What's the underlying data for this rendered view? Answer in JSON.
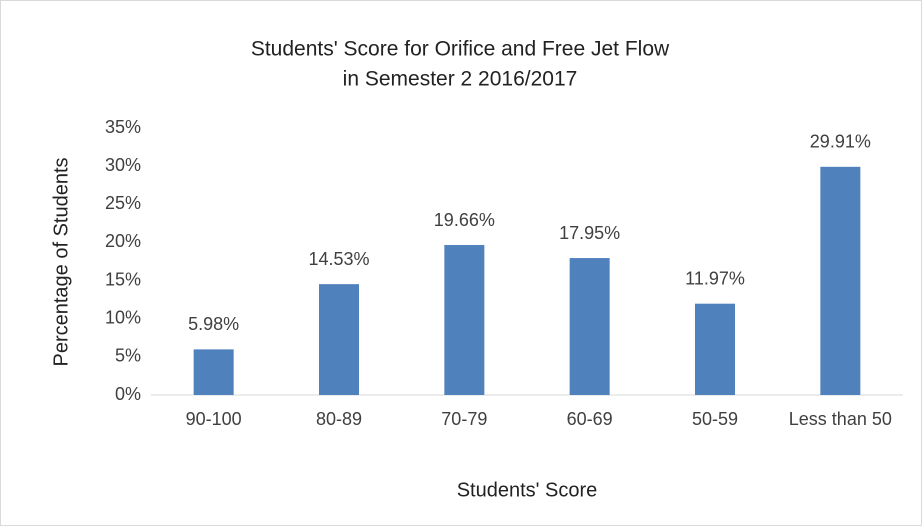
{
  "chart_data": {
    "type": "bar",
    "title": [
      "Students' Score for Orifice and Free Jet Flow",
      "in Semester 2 2016/2017"
    ],
    "x_label": "Students' Score",
    "y_label": "Percentage of Students",
    "categories": [
      "90-100",
      "80-89",
      "70-79",
      "60-69",
      "50-59",
      "Less than 50"
    ],
    "values": [
      5.98,
      14.53,
      19.66,
      17.95,
      11.97,
      29.91
    ],
    "value_labels": [
      "5.98%",
      "14.53%",
      "19.66%",
      "17.95%",
      "11.97%",
      "29.91%"
    ],
    "color": "#4f81bd",
    "ylim": [
      0,
      35
    ],
    "yticks": [
      {
        "value": 0,
        "label": "0%"
      },
      {
        "value": 5,
        "label": "5%"
      },
      {
        "value": 10,
        "label": "10%"
      },
      {
        "value": 15,
        "label": "15%"
      },
      {
        "value": 20,
        "label": "20%"
      },
      {
        "value": 25,
        "label": "25%"
      },
      {
        "value": 30,
        "label": "30%"
      },
      {
        "value": 35,
        "label": "35%"
      }
    ],
    "grid": false
  }
}
